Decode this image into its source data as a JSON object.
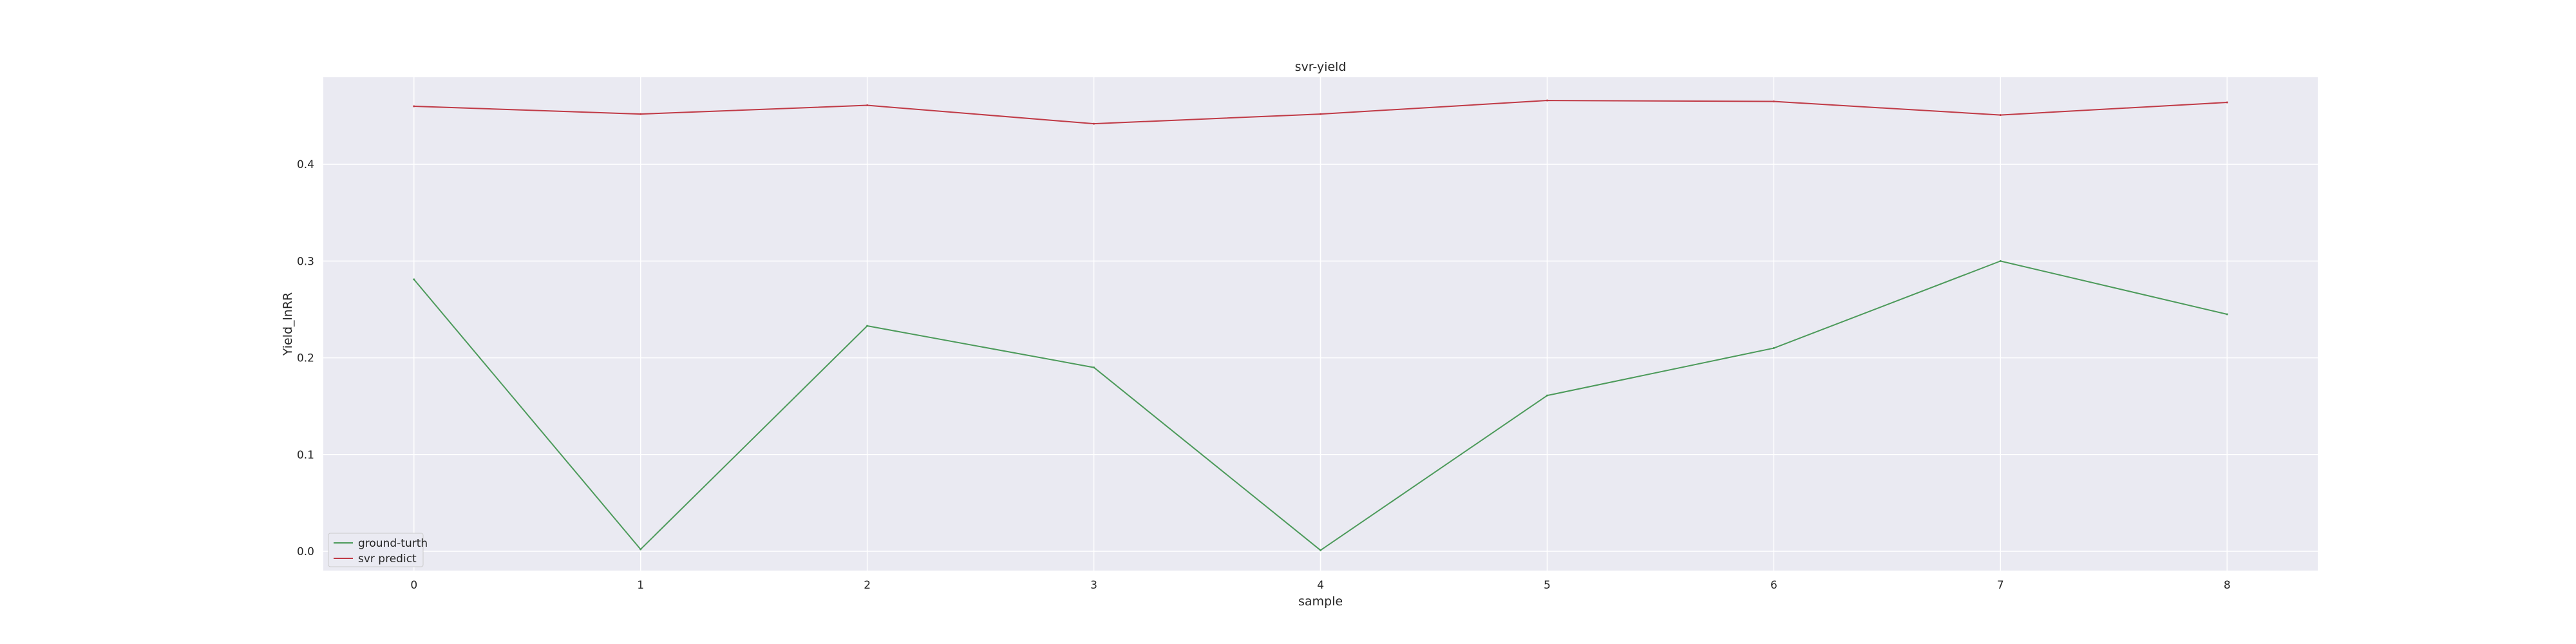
{
  "chart_data": {
    "type": "line",
    "title": "svr-yield",
    "xlabel": "sample",
    "ylabel": "Yield_lnRR",
    "x": [
      0,
      1,
      2,
      3,
      4,
      5,
      6,
      7,
      8
    ],
    "xlim": [
      -0.4,
      8.4
    ],
    "ylim": [
      -0.02,
      0.49
    ],
    "xticks": [
      0,
      1,
      2,
      3,
      4,
      5,
      6,
      7,
      8
    ],
    "yticks": [
      0.0,
      0.1,
      0.2,
      0.3,
      0.4
    ],
    "ytick_labels": [
      "0.0",
      "0.1",
      "0.2",
      "0.3",
      "0.4"
    ],
    "grid": true,
    "legend_position": "lower-left",
    "series": [
      {
        "name": "ground-turth",
        "color": "#4c9a5a",
        "values": [
          0.281,
          0.002,
          0.233,
          0.19,
          0.001,
          0.161,
          0.21,
          0.3,
          0.245
        ]
      },
      {
        "name": "svr predict",
        "color": "#c03a46",
        "values": [
          0.46,
          0.452,
          0.461,
          0.442,
          0.452,
          0.466,
          0.465,
          0.451,
          0.464
        ]
      }
    ]
  }
}
